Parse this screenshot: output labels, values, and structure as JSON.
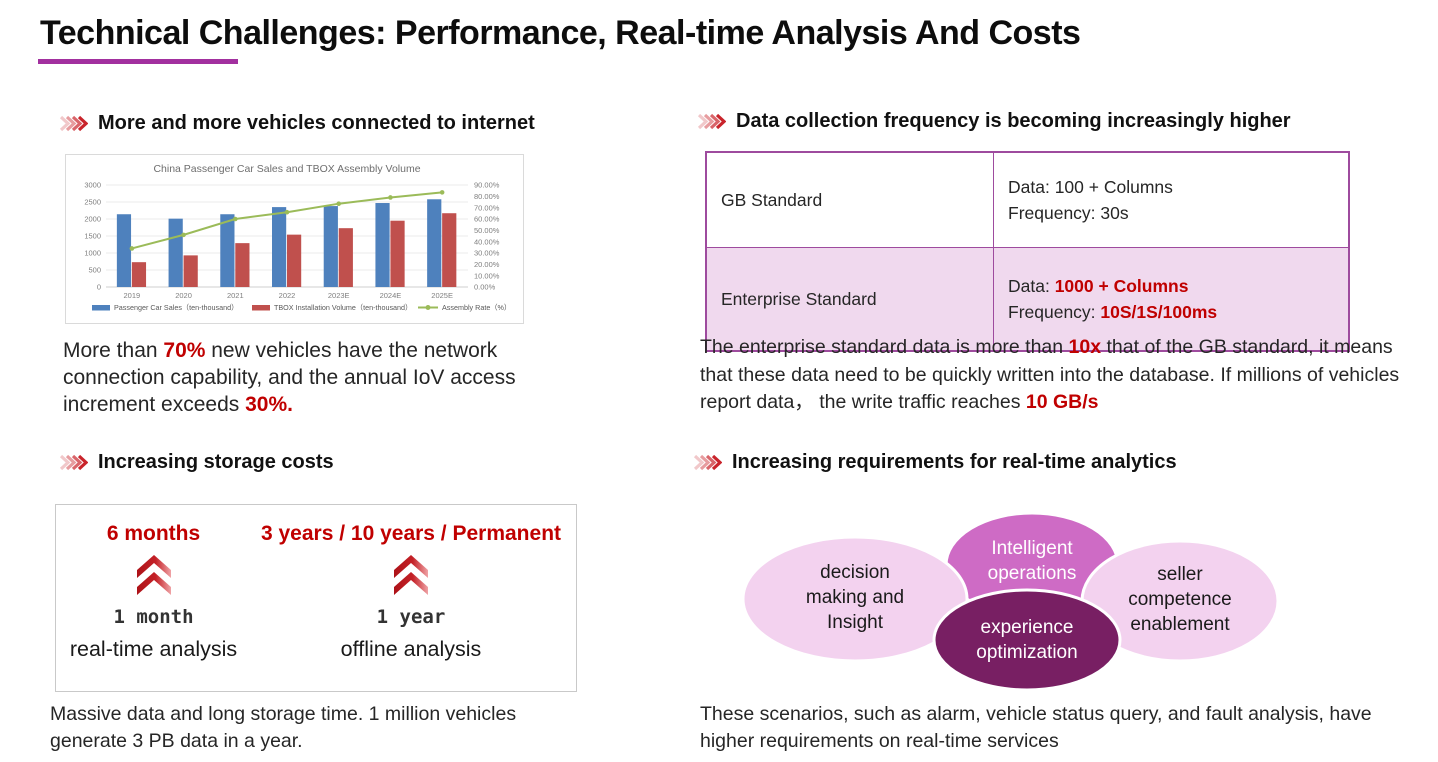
{
  "page": {
    "title": "Technical Challenges: Performance, Real-time Analysis And Costs"
  },
  "colors": {
    "accent_red": "#C00000",
    "title_underline_purple": "#A2309F",
    "header_chevron_red": "#C9242B",
    "table_border_purple": "#9E4B9E",
    "table_highlight_bg": "#F0D9EE",
    "chart_bar_blue": "#4E81BD",
    "chart_bar_red": "#C0504D",
    "chart_line_green": "#9BBB59"
  },
  "sections": {
    "vehicles": {
      "header": "More and more vehicles connected to internet",
      "paragraph": [
        {
          "t": "More than "
        },
        {
          "t": "70%",
          "red": true
        },
        {
          "t": " new vehicles have the network connection capability, and the annual IoV access increment exceeds "
        },
        {
          "t": "30%.",
          "red": true
        }
      ]
    },
    "frequency": {
      "header": "Data collection frequency is becoming increasingly higher",
      "table": {
        "rows": [
          {
            "label": "GB Standard",
            "highlight": false,
            "lines": [
              [
                {
                  "t": "Data: 100 + Columns"
                }
              ],
              [
                {
                  "t": "Frequency: 30s"
                }
              ]
            ]
          },
          {
            "label": "Enterprise Standard",
            "highlight": true,
            "lines": [
              [
                {
                  "t": "Data: "
                },
                {
                  "t": "1000 + Columns",
                  "red": true
                }
              ],
              [
                {
                  "t": "Frequency: "
                },
                {
                  "t": "10S/1S/100ms",
                  "red": true
                }
              ]
            ]
          }
        ]
      },
      "paragraph": [
        {
          "t": "The enterprise standard data is more than "
        },
        {
          "t": "10x",
          "red": true
        },
        {
          "t": " that of the GB standard, it means that these data need to be quickly written into the database. If millions of vehicles report data， the write traffic reaches "
        },
        {
          "t": "10 GB/s",
          "red": true
        }
      ]
    },
    "storage": {
      "header": "Increasing storage costs",
      "columns": [
        {
          "top": "6 months",
          "bottom": "1 month",
          "label": "real-time analysis"
        },
        {
          "top": "3 years / 10 years / Permanent",
          "bottom": "1 year",
          "label": "offline analysis"
        }
      ],
      "paragraph": [
        {
          "t": "Massive data and long storage time. 1 million vehicles generate 3 PB data in a year."
        }
      ]
    },
    "realtime": {
      "header": "Increasing requirements for real-time analytics",
      "colors": {
        "light": "#F3D2EF",
        "magenta": "#CE6BC5",
        "dark": "#781F63"
      },
      "ellipses": [
        {
          "label": "decision\nmaking and\nInsight"
        },
        {
          "label": "Intelligent\noperations"
        },
        {
          "label": "experience\noptimization"
        },
        {
          "label": "seller\ncompetence\nenablement"
        }
      ],
      "paragraph": [
        {
          "t": "These scenarios, such as alarm, vehicle status query, and fault analysis, have higher requirements on real-time services"
        }
      ]
    }
  },
  "chart_data": {
    "type": "bar",
    "title": "China Passenger Car Sales and TBOX Assembly Volume",
    "categories": [
      "2019",
      "2020",
      "2021",
      "2022",
      "2023E",
      "2024E",
      "2025E"
    ],
    "series": [
      {
        "name": "Passenger Car Sales（ten-thousand）",
        "type": "bar",
        "axis": "left",
        "color": "#4E81BD",
        "values": [
          2140,
          2010,
          2140,
          2350,
          2380,
          2470,
          2580
        ]
      },
      {
        "name": "TBOX Installation Volume（ten-thousand）",
        "type": "bar",
        "axis": "left",
        "color": "#C0504D",
        "values": [
          730,
          930,
          1290,
          1540,
          1730,
          1950,
          2170
        ]
      },
      {
        "name": "Assembly Rate（%）",
        "type": "line",
        "axis": "right",
        "color": "#9BBB59",
        "values": [
          34,
          46,
          60,
          66,
          73.5,
          79,
          83.5
        ]
      }
    ],
    "left_axis": {
      "min": 0,
      "max": 3000,
      "step": 500
    },
    "right_axis": {
      "min": 0,
      "max": 90,
      "step": 10,
      "suffix": "%"
    },
    "legend_position": "bottom",
    "grid": true
  }
}
